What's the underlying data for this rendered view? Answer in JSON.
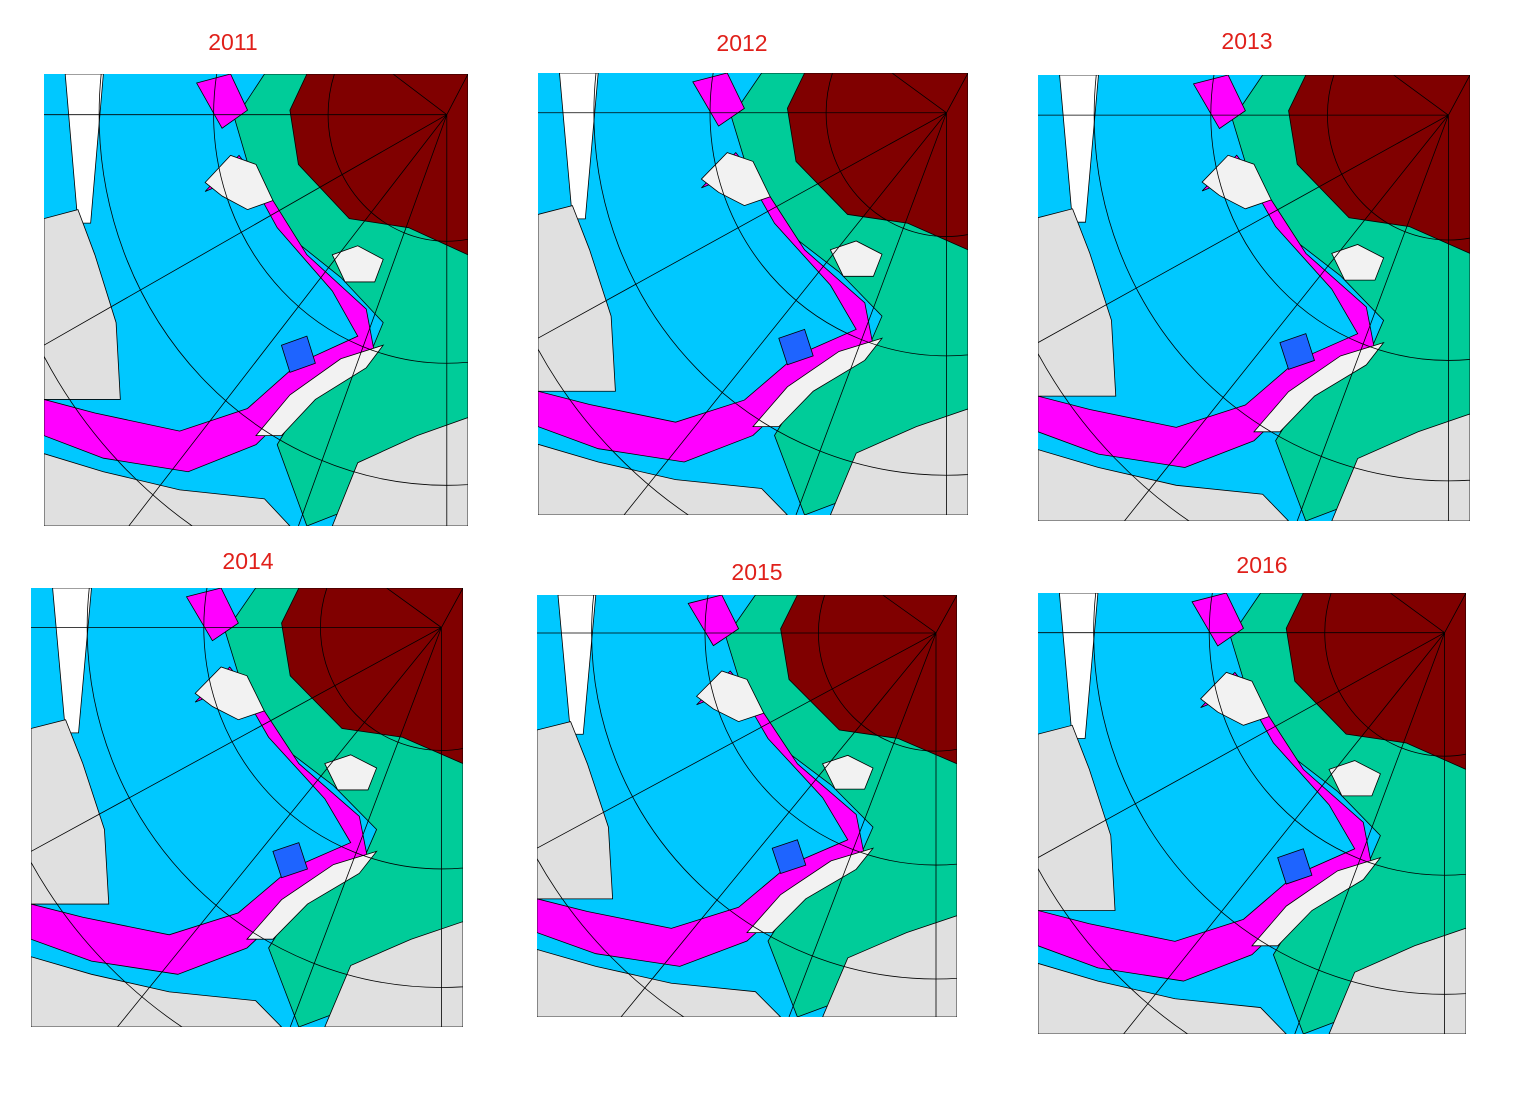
{
  "panels": [
    {
      "title": "2011"
    },
    {
      "title": "2012"
    },
    {
      "title": "2013"
    },
    {
      "title": "2014"
    },
    {
      "title": "2015"
    },
    {
      "title": "2016"
    }
  ]
}
